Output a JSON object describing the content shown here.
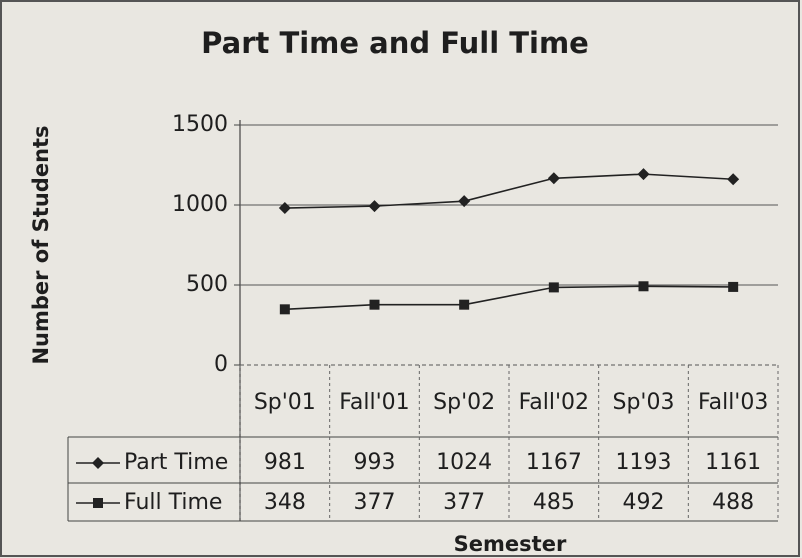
{
  "chart_data": {
    "type": "line",
    "title": "Part Time and Full Time",
    "x_label": "Semester",
    "y_label": "Number of Students",
    "categories": [
      "Sp'01",
      "Fall'01",
      "Sp'02",
      "Fall'02",
      "Sp'03",
      "Fall'03"
    ],
    "series": [
      {
        "name": "Part Time",
        "color": "#222222",
        "marker": "diamond",
        "values": [
          981,
          993,
          1024,
          1167,
          1193,
          1161
        ]
      },
      {
        "name": "Full Time",
        "color": "#222222",
        "marker": "square",
        "values": [
          348,
          377,
          377,
          485,
          492,
          488
        ]
      }
    ],
    "ylim": [
      0,
      1500
    ],
    "yticks": [
      0,
      500,
      1000,
      1500
    ],
    "grid": true,
    "data_table": true
  }
}
